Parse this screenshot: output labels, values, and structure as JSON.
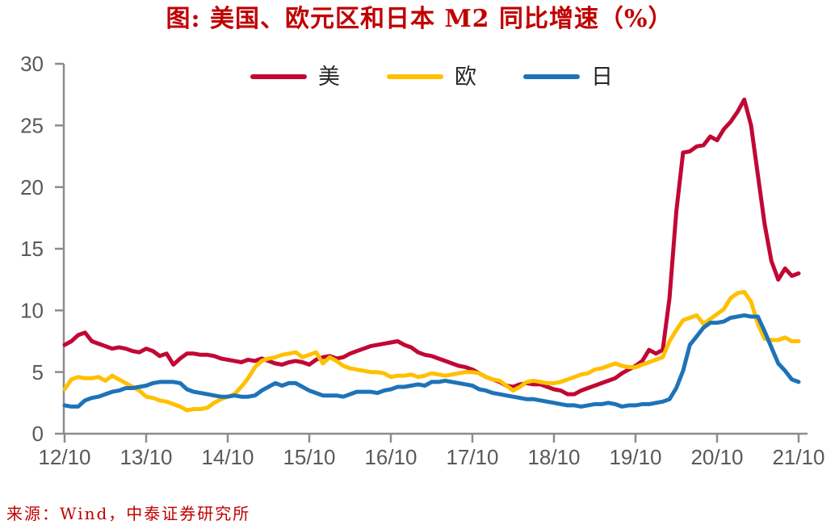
{
  "title": "图: 美国、欧元区和日本 M2 同比增速（%）",
  "source_note": "来源：Wind，中泰证券研究所",
  "colors": {
    "title_red": "#C00000",
    "us_line": "#C10835",
    "eu_line": "#FFC000",
    "jp_line": "#1E73B8",
    "axis": "#8C8C8C",
    "tick_label": "#595959",
    "legend_text": "#262626"
  },
  "chart_data": {
    "type": "line",
    "title": "图: 美国、欧元区和日本 M2 同比增速（%）",
    "x_unit": "month",
    "x_start": "2012-10",
    "x_end": "2021-10",
    "x_tick_labels": [
      "12/10",
      "13/10",
      "14/10",
      "15/10",
      "16/10",
      "17/10",
      "18/10",
      "19/10",
      "20/10",
      "21/10"
    ],
    "y_ticks": [
      0,
      5,
      10,
      15,
      20,
      25,
      30
    ],
    "ylim": [
      0,
      30
    ],
    "grid": false,
    "legend_position": "top-center",
    "series": [
      {
        "key": "us",
        "label": "美",
        "color": "#C10835",
        "values": [
          7.2,
          7.5,
          8.0,
          8.2,
          7.5,
          7.3,
          7.1,
          6.9,
          7.0,
          6.9,
          6.7,
          6.6,
          6.9,
          6.7,
          6.3,
          6.5,
          5.6,
          6.1,
          6.5,
          6.5,
          6.4,
          6.4,
          6.3,
          6.1,
          6.0,
          5.9,
          5.8,
          6.0,
          5.9,
          6.1,
          5.9,
          5.7,
          5.6,
          5.8,
          5.9,
          5.8,
          5.6,
          6.0,
          6.2,
          6.3,
          6.1,
          6.2,
          6.5,
          6.7,
          6.9,
          7.1,
          7.2,
          7.3,
          7.4,
          7.5,
          7.2,
          7.0,
          6.6,
          6.4,
          6.3,
          6.1,
          5.9,
          5.7,
          5.5,
          5.4,
          5.2,
          4.9,
          4.6,
          4.4,
          4.2,
          3.9,
          3.8,
          4.0,
          4.1,
          4.0,
          4.0,
          3.8,
          3.6,
          3.5,
          3.2,
          3.2,
          3.5,
          3.7,
          3.9,
          4.1,
          4.3,
          4.5,
          4.9,
          5.2,
          5.5,
          5.9,
          6.8,
          6.5,
          6.8,
          11.0,
          18.0,
          22.8,
          22.9,
          23.3,
          23.4,
          24.1,
          23.8,
          24.7,
          25.3,
          26.1,
          27.1,
          25.0,
          21.0,
          17.0,
          14.0,
          12.5,
          13.4,
          12.8,
          13.0
        ]
      },
      {
        "key": "eu",
        "label": "欧",
        "color": "#FFC000",
        "values": [
          3.6,
          4.4,
          4.6,
          4.5,
          4.5,
          4.6,
          4.3,
          4.7,
          4.4,
          4.1,
          3.8,
          3.5,
          3.0,
          2.9,
          2.7,
          2.6,
          2.4,
          2.2,
          1.9,
          2.0,
          2.0,
          2.1,
          2.5,
          2.8,
          3.0,
          3.2,
          3.8,
          4.5,
          5.4,
          5.9,
          6.1,
          6.2,
          6.4,
          6.5,
          6.6,
          6.2,
          6.4,
          6.6,
          5.7,
          6.2,
          5.9,
          5.5,
          5.3,
          5.2,
          5.1,
          5.0,
          5.0,
          4.9,
          4.6,
          4.7,
          4.7,
          4.8,
          4.6,
          4.7,
          4.9,
          4.8,
          4.7,
          4.8,
          4.9,
          5.0,
          5.0,
          4.9,
          4.6,
          4.4,
          4.3,
          3.9,
          3.5,
          3.8,
          4.2,
          4.3,
          4.2,
          4.1,
          4.1,
          4.2,
          4.4,
          4.6,
          4.8,
          4.9,
          5.2,
          5.3,
          5.5,
          5.7,
          5.5,
          5.4,
          5.4,
          5.6,
          5.8,
          6.0,
          6.2,
          7.5,
          8.4,
          9.2,
          9.4,
          9.6,
          8.9,
          9.3,
          9.7,
          10.1,
          11.0,
          11.4,
          11.5,
          10.7,
          8.9,
          7.7,
          7.6,
          7.6,
          7.8,
          7.5,
          7.5
        ]
      },
      {
        "key": "jp",
        "label": "日",
        "color": "#1E73B8",
        "values": [
          2.3,
          2.2,
          2.2,
          2.7,
          2.9,
          3.0,
          3.2,
          3.4,
          3.5,
          3.7,
          3.7,
          3.8,
          3.9,
          4.1,
          4.2,
          4.2,
          4.2,
          4.1,
          3.6,
          3.4,
          3.3,
          3.2,
          3.1,
          3.0,
          3.0,
          3.1,
          3.0,
          3.0,
          3.1,
          3.5,
          3.8,
          4.1,
          3.9,
          4.1,
          4.1,
          3.8,
          3.5,
          3.3,
          3.1,
          3.1,
          3.1,
          3.0,
          3.2,
          3.4,
          3.4,
          3.4,
          3.3,
          3.5,
          3.6,
          3.8,
          3.8,
          3.9,
          4.0,
          3.9,
          4.2,
          4.2,
          4.3,
          4.2,
          4.1,
          4.0,
          3.9,
          3.6,
          3.5,
          3.3,
          3.2,
          3.1,
          3.0,
          2.9,
          2.8,
          2.8,
          2.7,
          2.6,
          2.5,
          2.4,
          2.3,
          2.3,
          2.2,
          2.3,
          2.4,
          2.4,
          2.5,
          2.4,
          2.2,
          2.3,
          2.3,
          2.4,
          2.4,
          2.5,
          2.6,
          2.8,
          3.7,
          5.1,
          7.2,
          7.9,
          8.6,
          9.0,
          9.0,
          9.1,
          9.4,
          9.5,
          9.6,
          9.5,
          9.5,
          8.3,
          7.0,
          5.7,
          5.1,
          4.4,
          4.2
        ]
      }
    ]
  }
}
